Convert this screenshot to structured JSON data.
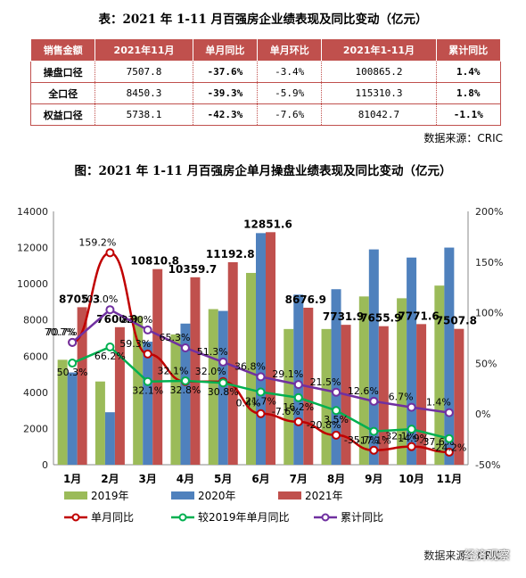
{
  "table": {
    "title": "表：2021 年 1-11 月百强房企业绩表现及同比变动（亿元）",
    "headers": [
      "销售金额",
      "2021年11月",
      "单月同比",
      "单月环比",
      "2021年1-11月",
      "累计同比"
    ],
    "rows": [
      {
        "name": "操盘口径",
        "nov": "7507.8",
        "yoy": "-37.6%",
        "mom": "-3.4%",
        "ytd": "100865.2",
        "ytd_yoy": "1.4%"
      },
      {
        "name": "全口径",
        "nov": "8450.3",
        "yoy": "-39.3%",
        "mom": "-5.9%",
        "ytd": "115310.3",
        "ytd_yoy": "1.8%"
      },
      {
        "name": "权益口径",
        "nov": "5738.1",
        "yoy": "-42.3%",
        "mom": "-7.6%",
        "ytd": "81042.7",
        "ytd_yoy": "-1.1%"
      }
    ],
    "source": "数据来源：CRIC"
  },
  "chart_title": "图：2021 年 1-11 月百强房企单月操盘业绩表现及同比变动（亿元）",
  "source_bottom": "数据来源：CRIC",
  "watermark": "经济观察",
  "chart_data": {
    "type": "bar",
    "categories": [
      "1月",
      "2月",
      "3月",
      "4月",
      "5月",
      "6月",
      "7月",
      "8月",
      "9月",
      "10月",
      "11月"
    ],
    "series": [
      {
        "name": "2019年",
        "kind": "bar",
        "axis": "left",
        "color": "#9bbb59",
        "values": [
          5800,
          4600,
          8200,
          7200,
          8600,
          10600,
          7500,
          7500,
          9300,
          9200,
          9900
        ]
      },
      {
        "name": "2020年",
        "kind": "bar",
        "axis": "left",
        "color": "#4f81bd",
        "values": [
          5100,
          2900,
          6800,
          7800,
          8500,
          12800,
          9400,
          9700,
          11900,
          11450,
          12000
        ]
      },
      {
        "name": "2021年",
        "kind": "bar",
        "axis": "left",
        "color": "#c0504d",
        "values": [
          8705.3,
          7600.9,
          10810.8,
          10359.7,
          11192.8,
          12851.6,
          8676.9,
          7731.9,
          7655.9,
          7771.6,
          7507.8
        ]
      },
      {
        "name": "单月同比",
        "kind": "line",
        "axis": "right",
        "color": "#c00000",
        "values": [
          70.7,
          159.2,
          59.3,
          32.1,
          32.0,
          0.4,
          -7.6,
          -20.8,
          -35.7,
          -32.1,
          -37.6
        ]
      },
      {
        "name": "较2019年单月同比",
        "kind": "line",
        "axis": "right",
        "color": "#00b050",
        "values": [
          50.3,
          66.2,
          32.1,
          32.8,
          30.8,
          21.7,
          16.2,
          3.5,
          -17.1,
          -14.9,
          -24.2
        ]
      },
      {
        "name": "累计同比",
        "kind": "line",
        "axis": "right",
        "color": "#7030a0",
        "values": [
          70.7,
          103.0,
          83.0,
          65.3,
          51.3,
          36.8,
          29.1,
          21.5,
          12.6,
          6.7,
          1.4
        ]
      }
    ],
    "bar_labels": [
      "8705.3",
      "7600.9",
      "10810.8",
      "10359.7",
      "11192.8",
      "12851.6",
      "8676.9",
      "7731.9",
      "7655.9",
      "7771.6",
      "7507.8"
    ],
    "left_axis": {
      "min": 0,
      "max": 14000,
      "ticks": [
        "0",
        "2000",
        "4000",
        "6000",
        "8000",
        "10000",
        "12000",
        "14000"
      ]
    },
    "right_axis": {
      "min": -50,
      "max": 200,
      "ticks": [
        "-50%",
        "0%",
        "50%",
        "100%",
        "150%",
        "200%"
      ]
    },
    "grid": false,
    "legend_position": "bottom"
  }
}
